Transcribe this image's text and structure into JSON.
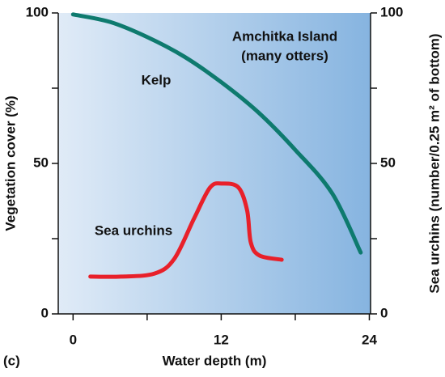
{
  "chart_data": {
    "type": "line",
    "panel_label": "(c)",
    "x_label": "Water depth (m)",
    "y_label": "Vegetation cover (%)",
    "y2_label": "Sea urchins (number/0.25 m² of bottom)",
    "annotations": [
      "Amchitka Island",
      "(many otters)"
    ],
    "xlim": [
      -1.2,
      24.1
    ],
    "xticks": [
      0,
      12,
      24
    ],
    "xminor_ticks": [
      6,
      18
    ],
    "ylim": [
      0,
      100
    ],
    "yticks": [
      0,
      50,
      100
    ],
    "yminor_ticks": [
      25,
      75
    ],
    "y2lim": [
      0,
      100
    ],
    "y2ticks": [
      0,
      50,
      100
    ],
    "y2minor_ticks": [
      25,
      75
    ],
    "series": [
      {
        "name": "Kelp",
        "color": "#0e7a6e",
        "x": [
          0,
          3,
          6,
          9,
          12,
          15,
          18,
          21,
          23.3
        ],
        "values": [
          99.5,
          97,
          92,
          85.5,
          77,
          67,
          54.5,
          40,
          20.4
        ]
      },
      {
        "name": "Sea urchins",
        "color": "#e8202a",
        "axis": "y2",
        "x": [
          1.4,
          3.9,
          6.6,
          8.2,
          9.8,
          11.1,
          12.1,
          13.4,
          14.1,
          14.4,
          15.1,
          16.9
        ],
        "values": [
          12.4,
          12.4,
          13.4,
          18.3,
          31.7,
          42,
          43.3,
          42,
          34.4,
          23.7,
          19.4,
          18
        ]
      }
    ]
  }
}
